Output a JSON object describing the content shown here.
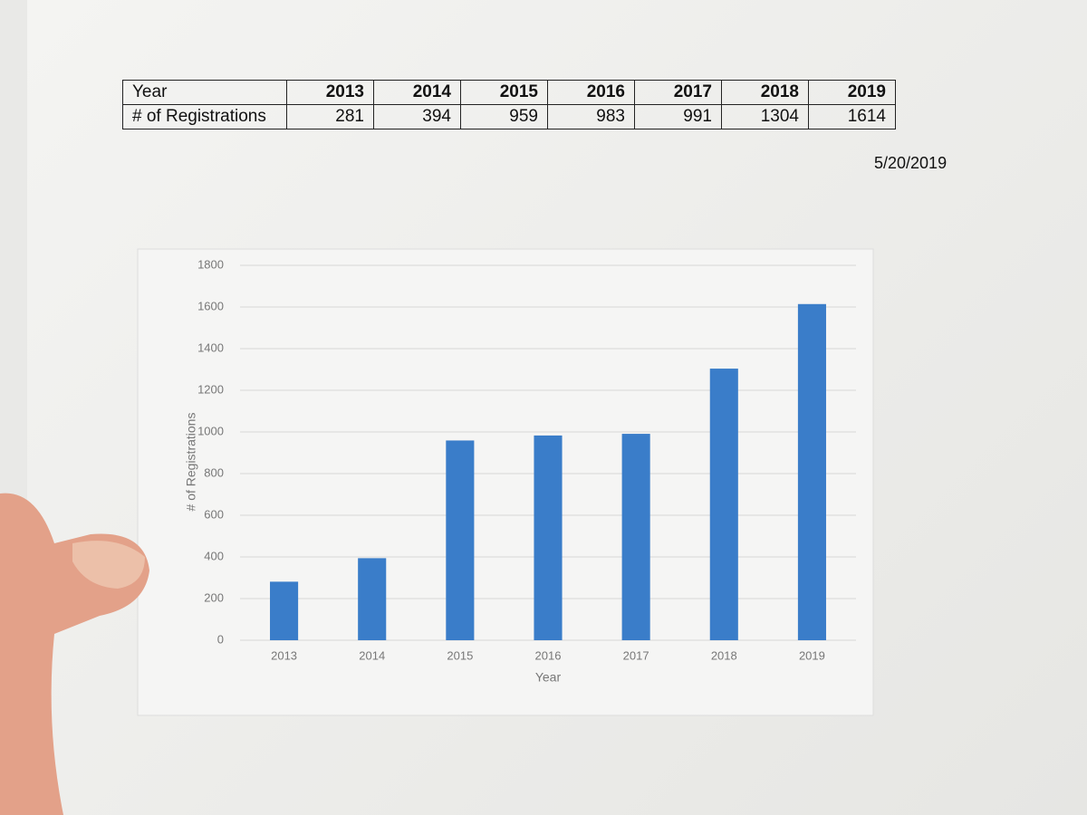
{
  "table": {
    "header": [
      "Year",
      "2013",
      "2014",
      "2015",
      "2016",
      "2017",
      "2018",
      "2019"
    ],
    "rows": [
      [
        "# of Registrations",
        281,
        394,
        959,
        983,
        991,
        1304,
        1614
      ]
    ]
  },
  "date": "5/20/2019",
  "chart_data": {
    "type": "bar",
    "categories": [
      "2013",
      "2014",
      "2015",
      "2016",
      "2017",
      "2018",
      "2019"
    ],
    "values": [
      281,
      394,
      959,
      983,
      991,
      1304,
      1614
    ],
    "color": "#3a7dc9",
    "x_label": "Year",
    "y_label": "# of Registrations",
    "ylim": [
      0,
      1800
    ],
    "yticks": [
      0,
      200,
      400,
      600,
      800,
      1000,
      1200,
      1400,
      1600,
      1800
    ],
    "grid": true
  }
}
